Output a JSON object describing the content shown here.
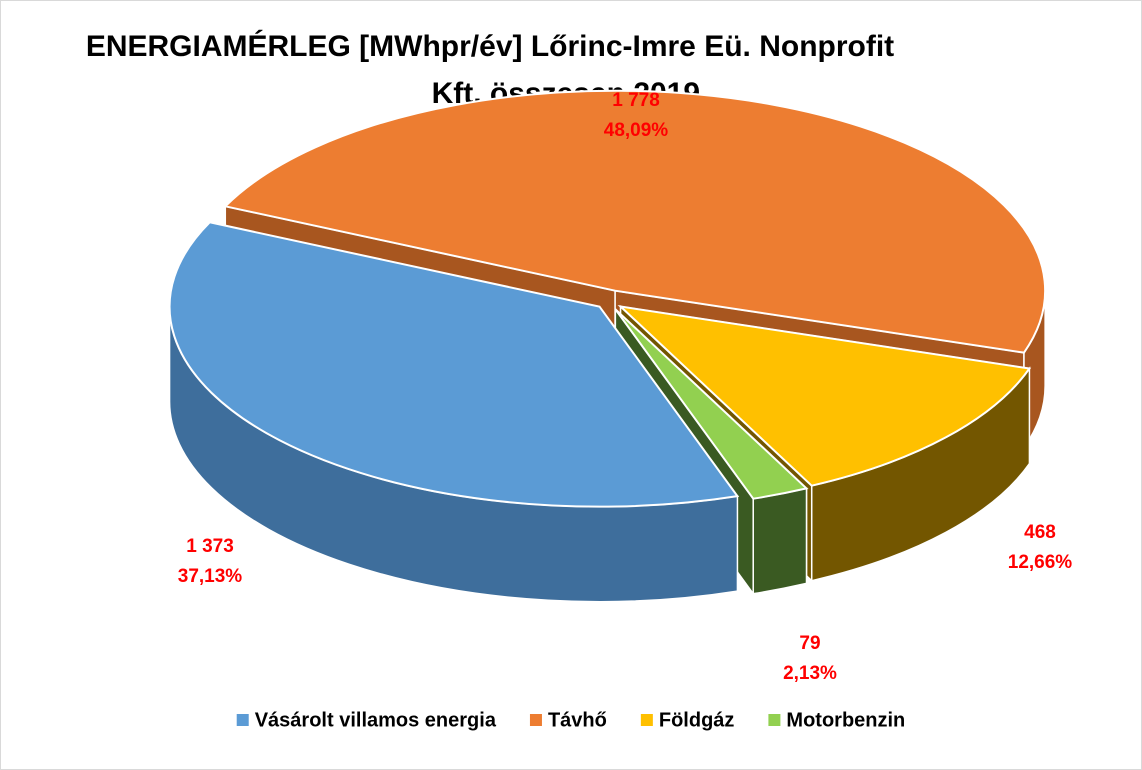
{
  "chart_data": {
    "type": "pie3d",
    "title": [
      "ENERGIAMÉRLEG [MWhpr/év] Lőrinc-Imre Eü. Nonprofit",
      "Kft. összesen 2019."
    ],
    "categories": [
      "Vásárolt villamos energia",
      "Távhő",
      "Földgáz",
      "Motorbenzin"
    ],
    "values": [
      1373,
      1778,
      468,
      79
    ],
    "value_labels": [
      "1 373",
      "1 778",
      "468",
      "79"
    ],
    "percents": [
      37.13,
      48.09,
      12.66,
      2.13
    ],
    "percent_labels": [
      "37,13%",
      "48,09%",
      "12,66%",
      "2,13%"
    ],
    "colors": [
      "#5b9bd5",
      "#ed7d31",
      "#ffc000",
      "#92d050"
    ],
    "side_colors": [
      "#3e6e9c",
      "#a8561f",
      "#735600",
      "#3a5a22"
    ],
    "label_color": "#ff0000",
    "legend": "bottom"
  }
}
